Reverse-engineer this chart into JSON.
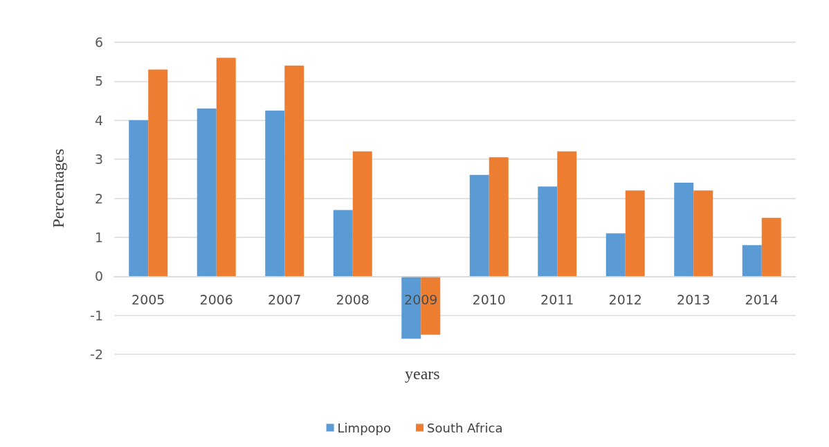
{
  "chart_data": {
    "type": "bar",
    "xlabel": "years",
    "ylabel": "Percentages",
    "categories": [
      "2005",
      "2006",
      "2007",
      "2008",
      "2009",
      "2010",
      "2011",
      "2012",
      "2013",
      "2014"
    ],
    "series": [
      {
        "name": "Limpopo",
        "color": "#5b9bd5",
        "values": [
          4.0,
          4.3,
          4.25,
          1.7,
          -1.6,
          2.6,
          2.3,
          1.1,
          2.4,
          0.8
        ]
      },
      {
        "name": "South Africa",
        "color": "#ed7d31",
        "values": [
          5.3,
          5.6,
          5.4,
          3.2,
          -1.5,
          3.05,
          3.2,
          2.2,
          2.2,
          1.5
        ]
      }
    ],
    "ylim": [
      -2,
      6
    ],
    "yticks": [
      -2,
      -1,
      0,
      1,
      2,
      3,
      4,
      5,
      6
    ],
    "grid": "y",
    "legend": "bottom"
  }
}
